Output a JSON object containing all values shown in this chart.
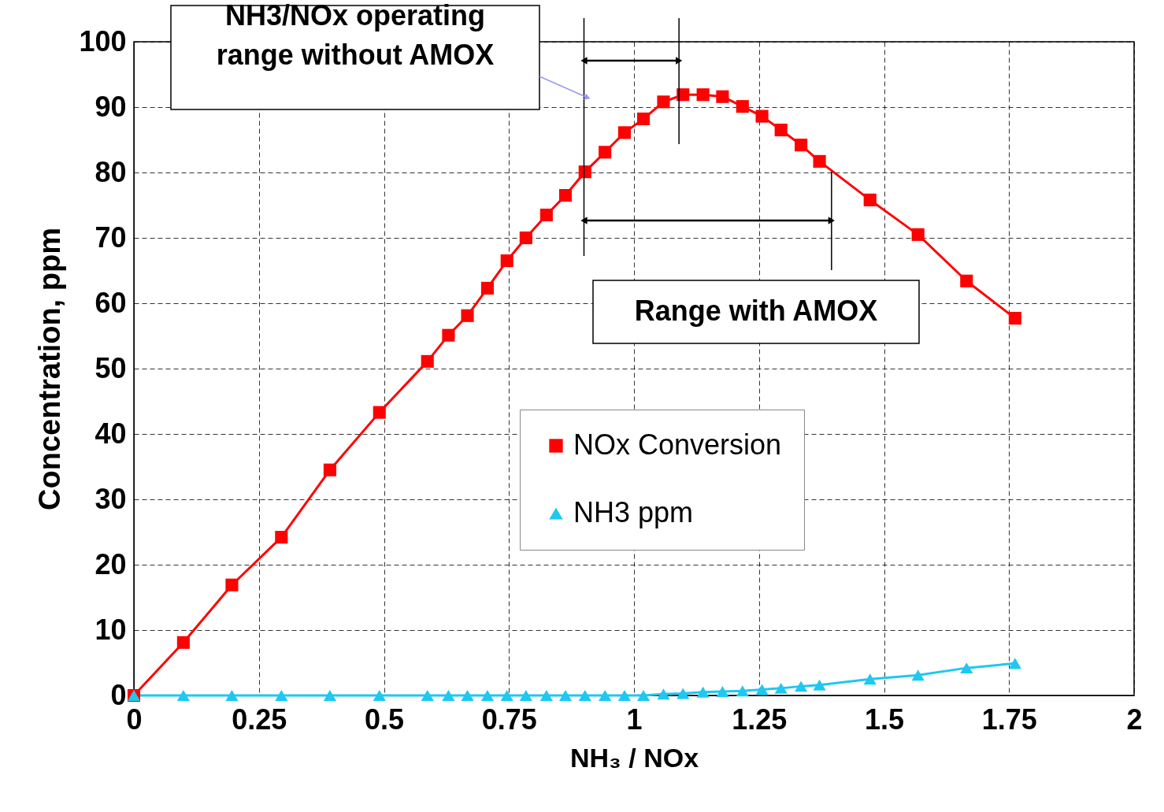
{
  "chart_data": {
    "type": "line",
    "xlabel": "NH₃ / NOx",
    "ylabel": "Concentration, ppm",
    "series": [
      {
        "name": "NOx Conversion",
        "color": "#ff0000",
        "marker": "square",
        "x": [
          0,
          0.099,
          0.196,
          0.295,
          0.392,
          0.491,
          0.587,
          0.629,
          0.667,
          0.707,
          0.746,
          0.784,
          0.825,
          0.863,
          0.902,
          0.942,
          0.981,
          1.019,
          1.059,
          1.098,
          1.138,
          1.177,
          1.217,
          1.256,
          1.294,
          1.334,
          1.371,
          1.472,
          1.568,
          1.665,
          1.762
        ],
        "values": [
          0,
          8.1,
          16.9,
          24.2,
          34.5,
          43.3,
          51.1,
          55.1,
          58.1,
          62.3,
          66.5,
          70.0,
          73.5,
          76.5,
          80.1,
          83.1,
          86.1,
          88.2,
          90.8,
          91.9,
          91.9,
          91.6,
          90.1,
          88.6,
          86.5,
          84.2,
          81.7,
          75.8,
          70.5,
          63.4,
          57.7
        ]
      },
      {
        "name": "NH3 ppm",
        "color": "#1ec8f0",
        "marker": "triangle",
        "x": [
          0,
          0.099,
          0.196,
          0.295,
          0.392,
          0.491,
          0.587,
          0.629,
          0.667,
          0.707,
          0.746,
          0.784,
          0.825,
          0.863,
          0.902,
          0.942,
          0.981,
          1.019,
          1.059,
          1.098,
          1.138,
          1.177,
          1.217,
          1.256,
          1.294,
          1.334,
          1.371,
          1.472,
          1.568,
          1.665,
          1.762
        ],
        "values": [
          0,
          0,
          0,
          0,
          0,
          0,
          0,
          0,
          0,
          0,
          0,
          0,
          0,
          0,
          0,
          0,
          0,
          0,
          0.2,
          0.3,
          0.5,
          0.6,
          0.7,
          0.9,
          1.1,
          1.4,
          1.6,
          2.5,
          3.1,
          4.2,
          4.9
        ]
      }
    ],
    "xlim": [
      0,
      2
    ],
    "xticks": [
      0,
      0.25,
      0.5,
      0.75,
      1,
      1.25,
      1.5,
      1.75,
      2
    ],
    "ylim": [
      0,
      100
    ],
    "yticks": [
      0,
      10,
      20,
      30,
      40,
      50,
      60,
      70,
      80,
      90,
      100
    ],
    "grid": true,
    "legend": "right",
    "ref_lines": [
      {
        "axis": "x",
        "value": 0.9
      },
      {
        "axis": "x",
        "value": 1.09
      },
      {
        "axis": "x",
        "value": 1.395
      }
    ],
    "annotations": [
      "NH3/NOx operating range  without AMOX",
      "Range with AMOX"
    ]
  }
}
